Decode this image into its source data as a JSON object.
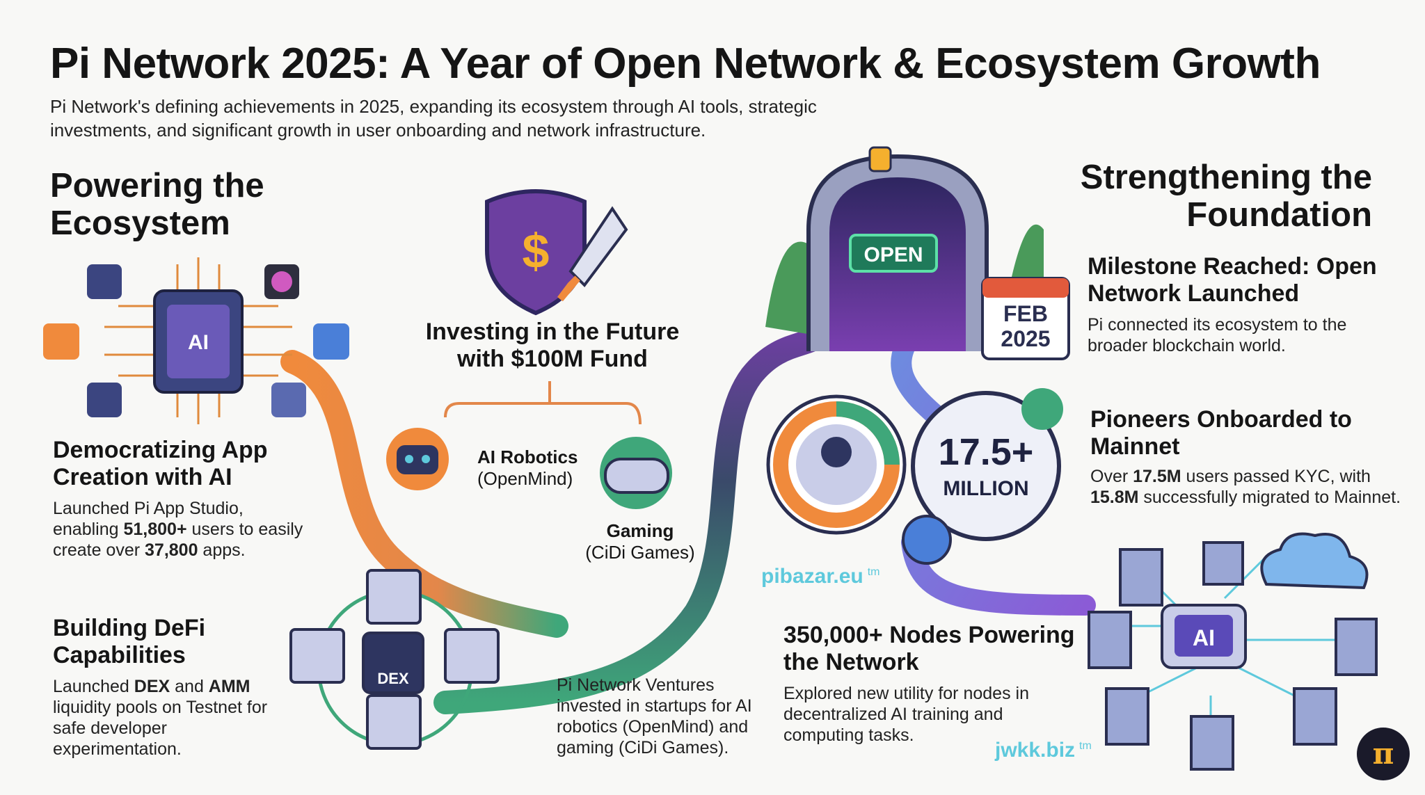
{
  "title": "Pi Network 2025: A Year of Open Network & Ecosystem Growth",
  "subtitle": "Pi Network's defining achievements in 2025, expanding its ecosystem through AI tools, strategic investments, and significant growth in user onboarding and network infrastructure.",
  "left": {
    "section_title": "Powering the Ecosystem",
    "app": {
      "heading": "Democratizing App Creation with AI",
      "chip_label": "AI",
      "body_pre": "Launched Pi App Studio, enabling ",
      "users": "51,800+",
      "body_mid": " users to easily create over ",
      "apps": "37,800",
      "body_post": " apps."
    },
    "defi": {
      "heading": "Building DeFi Capabilities",
      "dex_label": "DEX",
      "body_pre": "Launched ",
      "dex": "DEX",
      "body_and": " and ",
      "amm": "AMM",
      "body_post": " liquidity pools on Testnet for safe developer experimentation."
    }
  },
  "center": {
    "fund_heading": "Investing in the Future with $100M Fund",
    "robotics": "AI Robotics",
    "robotics_sub": "(OpenMind)",
    "gaming": "Gaming",
    "gaming_sub": "(CiDi Games)",
    "ventures_body": "Pi Network Ventures invested in startups for AI robotics (OpenMind) and gaming (CiDi Games)."
  },
  "right": {
    "section_title": "Strengthening the Foundation",
    "open_sign": "OPEN",
    "calendar": {
      "month": "FEB",
      "year": "2025"
    },
    "milestone": {
      "heading": "Milestone Reached: Open Network Launched",
      "body": "Pi connected its ecosystem to the broader blockchain world."
    },
    "pioneers": {
      "big_number": "17.5+",
      "big_unit": "MILLION",
      "heading": "Pioneers Onboarded to Mainnet",
      "body_pre": "Over ",
      "kyc": "17.5M",
      "body_mid": " users passed KYC, with ",
      "migrated": "15.8M",
      "body_post": " successfully migrated to Mainnet."
    },
    "nodes": {
      "heading": "350,000+ Nodes Powering the Network",
      "chip_label": "AI",
      "body": "Explored new utility for nodes in decentralized AI training and computing tasks."
    }
  },
  "watermarks": {
    "site1": "pibazar.eu",
    "site2": "jwkk.biz",
    "tm": "tm"
  },
  "colors": {
    "orange": "#f08a3c",
    "green": "#3fa77a",
    "purple": "#6c3fa0",
    "blue": "#4a7fd8",
    "navy": "#2e3560",
    "cyan": "#5ec9dc"
  }
}
